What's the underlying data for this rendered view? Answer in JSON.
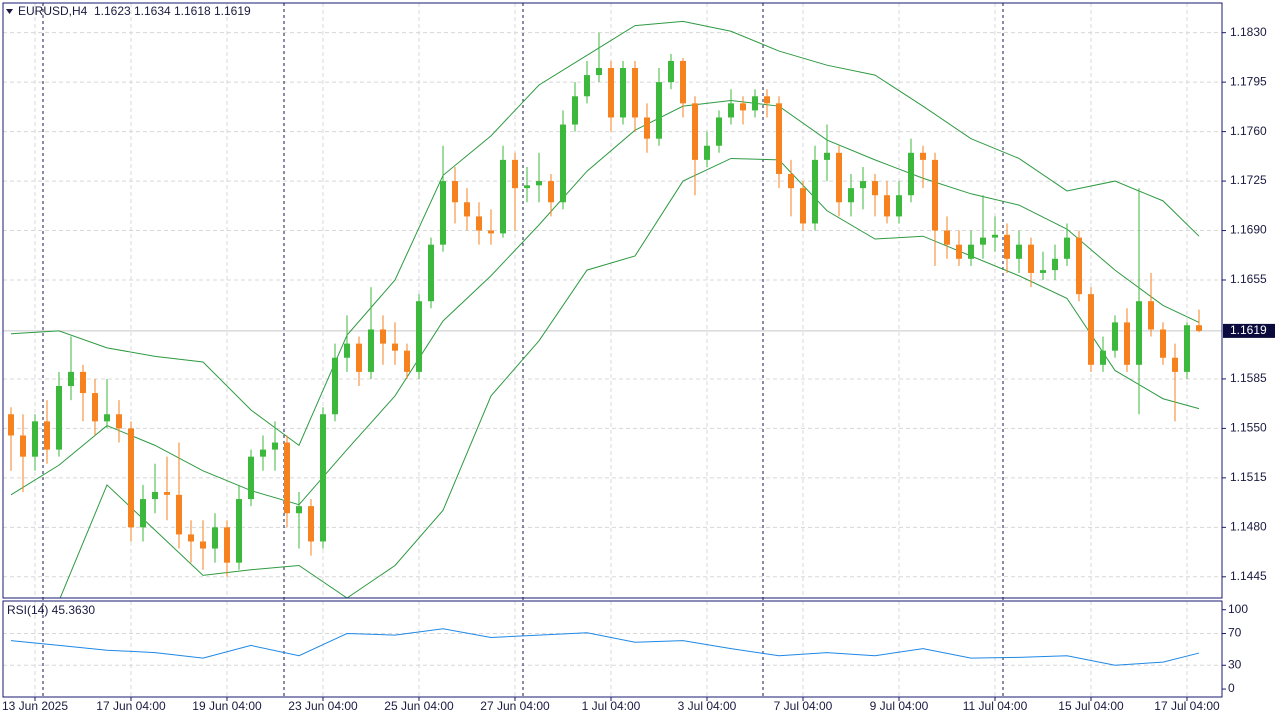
{
  "chart_data": {
    "type": "candlestick",
    "symbol": "EURUSD,H4",
    "up_color": "#3cb83c",
    "down_color": "#f5821f",
    "grid": true,
    "ylim": [
      1.143,
      1.1851
    ],
    "yticks": [
      1.1445,
      {
        "value": 1.148,
        "label": "1.1480"
      },
      1.1515,
      {
        "value": 1.155,
        "label": "1.1550"
      },
      1.1585,
      1.1655,
      {
        "value": 1.169,
        "label": "1.1690"
      },
      1.1725,
      {
        "value": 1.176,
        "label": "1.1760"
      },
      1.1795,
      {
        "value": 1.183,
        "label": "1.1830"
      }
    ],
    "xticks": [
      {
        "value": 2,
        "label": "13 Jun 2025"
      },
      {
        "value": 10,
        "label": "17 Jun 04:00"
      },
      {
        "value": 18,
        "label": "19 Jun 04:00"
      },
      {
        "value": 26,
        "label": "23 Jun 04:00"
      },
      {
        "value": 34,
        "label": "25 Jun 04:00"
      },
      {
        "value": 42,
        "label": "27 Jun 04:00"
      },
      {
        "value": 50,
        "label": "1 Jul 04:00"
      },
      {
        "value": 58,
        "label": "3 Jul 04:00"
      },
      {
        "value": 66,
        "label": "7 Jul 04:00"
      },
      {
        "value": 74,
        "label": "9 Jul 04:00"
      },
      {
        "value": 82,
        "label": "11 Jul 04:00"
      },
      {
        "value": 90,
        "label": "15 Jul 04:00"
      },
      {
        "value": 98,
        "label": "17 Jul 04:00"
      }
    ],
    "candles": [
      [
        1.156,
        1.1565,
        1.152,
        1.1545
      ],
      [
        1.1545,
        1.156,
        1.1505,
        1.153
      ],
      [
        1.153,
        1.156,
        1.152,
        1.1555
      ],
      [
        1.1555,
        1.157,
        1.1525,
        1.1535
      ],
      [
        1.1535,
        1.159,
        1.153,
        1.158
      ],
      [
        1.158,
        1.1615,
        1.157,
        1.159
      ],
      [
        1.159,
        1.1595,
        1.1555,
        1.1575
      ],
      [
        1.1575,
        1.1585,
        1.1545,
        1.1555
      ],
      [
        1.1555,
        1.1585,
        1.155,
        1.156
      ],
      [
        1.156,
        1.157,
        1.154,
        1.155
      ],
      [
        1.155,
        1.1555,
        1.147,
        1.148
      ],
      [
        1.148,
        1.151,
        1.147,
        1.15
      ],
      [
        1.15,
        1.1525,
        1.149,
        1.1505
      ],
      [
        1.1505,
        1.153,
        1.1485,
        1.1503
      ],
      [
        1.1503,
        1.154,
        1.1465,
        1.1475
      ],
      [
        1.1475,
        1.1485,
        1.1455,
        1.147
      ],
      [
        1.147,
        1.1485,
        1.145,
        1.1465
      ],
      [
        1.1465,
        1.149,
        1.1455,
        1.148
      ],
      [
        1.148,
        1.1485,
        1.1445,
        1.1455
      ],
      [
        1.1455,
        1.151,
        1.145,
        1.15
      ],
      [
        1.15,
        1.1535,
        1.1495,
        1.153
      ],
      [
        1.153,
        1.1545,
        1.152,
        1.1535
      ],
      [
        1.1535,
        1.1555,
        1.152,
        1.154
      ],
      [
        1.154,
        1.1545,
        1.148,
        1.149
      ],
      [
        1.149,
        1.1505,
        1.1465,
        1.1495
      ],
      [
        1.1495,
        1.15,
        1.146,
        1.147
      ],
      [
        1.147,
        1.1565,
        1.1465,
        1.156
      ],
      [
        1.156,
        1.161,
        1.1555,
        1.16
      ],
      [
        1.16,
        1.163,
        1.159,
        1.161
      ],
      [
        1.161,
        1.1615,
        1.158,
        1.159
      ],
      [
        1.159,
        1.165,
        1.1585,
        1.162
      ],
      [
        1.162,
        1.163,
        1.1595,
        1.161
      ],
      [
        1.161,
        1.1625,
        1.1595,
        1.1605
      ],
      [
        1.1605,
        1.161,
        1.1585,
        1.159
      ],
      [
        1.159,
        1.1645,
        1.1585,
        1.164
      ],
      [
        1.164,
        1.1685,
        1.1635,
        1.168
      ],
      [
        1.168,
        1.175,
        1.1675,
        1.1725
      ],
      [
        1.1725,
        1.1735,
        1.1695,
        1.171
      ],
      [
        1.171,
        1.172,
        1.169,
        1.17
      ],
      [
        1.17,
        1.171,
        1.168,
        1.169
      ],
      [
        1.169,
        1.1705,
        1.168,
        1.1688
      ],
      [
        1.1688,
        1.175,
        1.1685,
        1.174
      ],
      [
        1.174,
        1.1745,
        1.169,
        1.172
      ],
      [
        1.172,
        1.1735,
        1.171,
        1.1722
      ],
      [
        1.1722,
        1.1745,
        1.171,
        1.1725
      ],
      [
        1.1725,
        1.173,
        1.17,
        1.171
      ],
      [
        1.171,
        1.1775,
        1.1705,
        1.1765
      ],
      [
        1.1765,
        1.1795,
        1.176,
        1.1785
      ],
      [
        1.1785,
        1.181,
        1.178,
        1.18
      ],
      [
        1.18,
        1.183,
        1.1795,
        1.1805
      ],
      [
        1.1805,
        1.181,
        1.176,
        1.177
      ],
      [
        1.177,
        1.181,
        1.1765,
        1.1805
      ],
      [
        1.1805,
        1.181,
        1.176,
        1.177
      ],
      [
        1.177,
        1.178,
        1.1745,
        1.1755
      ],
      [
        1.1755,
        1.1805,
        1.175,
        1.1795
      ],
      [
        1.1795,
        1.1815,
        1.179,
        1.181
      ],
      [
        1.181,
        1.1812,
        1.177,
        1.178
      ],
      [
        1.178,
        1.1785,
        1.1715,
        1.174
      ],
      [
        1.174,
        1.176,
        1.1735,
        1.175
      ],
      [
        1.175,
        1.1775,
        1.1745,
        1.177
      ],
      [
        1.177,
        1.179,
        1.1765,
        1.178
      ],
      [
        1.178,
        1.1785,
        1.1765,
        1.1775
      ],
      [
        1.1775,
        1.179,
        1.177,
        1.1785
      ],
      [
        1.1785,
        1.179,
        1.177,
        1.178
      ],
      [
        1.178,
        1.1785,
        1.172,
        1.173
      ],
      [
        1.173,
        1.174,
        1.17,
        1.172
      ],
      [
        1.172,
        1.1725,
        1.169,
        1.1695
      ],
      [
        1.1695,
        1.175,
        1.169,
        1.174
      ],
      [
        1.174,
        1.1765,
        1.1725,
        1.1745
      ],
      [
        1.1745,
        1.175,
        1.17,
        1.171
      ],
      [
        1.171,
        1.173,
        1.17,
        1.172
      ],
      [
        1.172,
        1.1735,
        1.1705,
        1.1725
      ],
      [
        1.1725,
        1.173,
        1.17,
        1.1715
      ],
      [
        1.1715,
        1.1725,
        1.1695,
        1.17
      ],
      [
        1.17,
        1.1725,
        1.1695,
        1.1715
      ],
      [
        1.1715,
        1.1755,
        1.171,
        1.1745
      ],
      [
        1.1745,
        1.175,
        1.172,
        1.174
      ],
      [
        1.174,
        1.1745,
        1.1665,
        1.169
      ],
      [
        1.169,
        1.17,
        1.167,
        1.168
      ],
      [
        1.168,
        1.169,
        1.1665,
        1.167
      ],
      [
        1.167,
        1.169,
        1.1665,
        1.168
      ],
      [
        1.168,
        1.1715,
        1.167,
        1.1685
      ],
      [
        1.1685,
        1.17,
        1.1675,
        1.1687
      ],
      [
        1.1687,
        1.1695,
        1.166,
        1.167
      ],
      [
        1.167,
        1.169,
        1.166,
        1.168
      ],
      [
        1.168,
        1.1685,
        1.165,
        1.166
      ],
      [
        1.166,
        1.1675,
        1.1655,
        1.1662
      ],
      [
        1.1662,
        1.168,
        1.1655,
        1.167
      ],
      [
        1.167,
        1.1695,
        1.1665,
        1.1685
      ],
      [
        1.1685,
        1.169,
        1.164,
        1.1645
      ],
      [
        1.1645,
        1.165,
        1.159,
        1.1595
      ],
      [
        1.1595,
        1.1615,
        1.159,
        1.1605
      ],
      [
        1.1605,
        1.163,
        1.16,
        1.1625
      ],
      [
        1.1625,
        1.1635,
        1.159,
        1.1595
      ],
      [
        1.1595,
        1.172,
        1.156,
        1.164
      ],
      [
        1.164,
        1.166,
        1.1615,
        1.162
      ],
      [
        1.162,
        1.1625,
        1.1595,
        1.16
      ],
      [
        1.16,
        1.161,
        1.1555,
        1.159
      ],
      [
        1.159,
        1.1625,
        1.1585,
        1.1623
      ],
      [
        1.1623,
        1.1634,
        1.1618,
        1.1619
      ]
    ],
    "bands": {
      "color": "#2e9a42",
      "x": [
        0,
        4,
        8,
        12,
        16,
        20,
        24,
        28,
        32,
        36,
        40,
        44,
        48,
        52,
        56,
        60,
        64,
        68,
        72,
        76,
        80,
        84,
        88,
        92,
        96,
        99
      ],
      "upper": [
        1.1617,
        1.1619,
        1.1607,
        1.1601,
        1.1597,
        1.1563,
        1.1538,
        1.1616,
        1.1655,
        1.1729,
        1.1757,
        1.1793,
        1.1814,
        1.1835,
        1.1838,
        1.1831,
        1.1817,
        1.1807,
        1.18,
        1.1778,
        1.1755,
        1.1741,
        1.1718,
        1.1725,
        1.1711,
        1.1686
      ],
      "middle": [
        1.1503,
        1.1524,
        1.1552,
        1.1538,
        1.152,
        1.1506,
        1.1496,
        1.1535,
        1.1573,
        1.1626,
        1.1658,
        1.1694,
        1.1732,
        1.1761,
        1.1778,
        1.1782,
        1.1778,
        1.1754,
        1.174,
        1.1727,
        1.1716,
        1.1708,
        1.1691,
        1.1662,
        1.1637,
        1.1625
      ],
      "lower": [
        1.1386,
        1.1428,
        1.151,
        1.1478,
        1.1446,
        1.145,
        1.1453,
        1.143,
        1.1453,
        1.1492,
        1.1573,
        1.1612,
        1.1662,
        1.1672,
        1.1725,
        1.1741,
        1.174,
        1.1704,
        1.1684,
        1.1686,
        1.1672,
        1.1658,
        1.1642,
        1.1591,
        1.1571,
        1.1564
      ]
    },
    "rsi": {
      "title": "RSI(14) 45.3630",
      "color": "#1e88e5",
      "ylim": [
        -10,
        111
      ],
      "yticks": [
        0,
        30,
        70,
        100
      ],
      "x": [
        0,
        4,
        8,
        12,
        16,
        20,
        24,
        28,
        32,
        36,
        40,
        44,
        48,
        52,
        56,
        60,
        64,
        68,
        72,
        76,
        80,
        84,
        88,
        92,
        96,
        99
      ],
      "values": [
        61,
        55,
        49,
        46,
        39,
        55,
        42,
        70,
        68,
        76,
        65,
        68,
        71,
        59,
        61,
        51,
        42,
        46,
        42,
        51,
        39,
        40,
        42,
        30,
        34,
        45.363
      ]
    }
  }
}
